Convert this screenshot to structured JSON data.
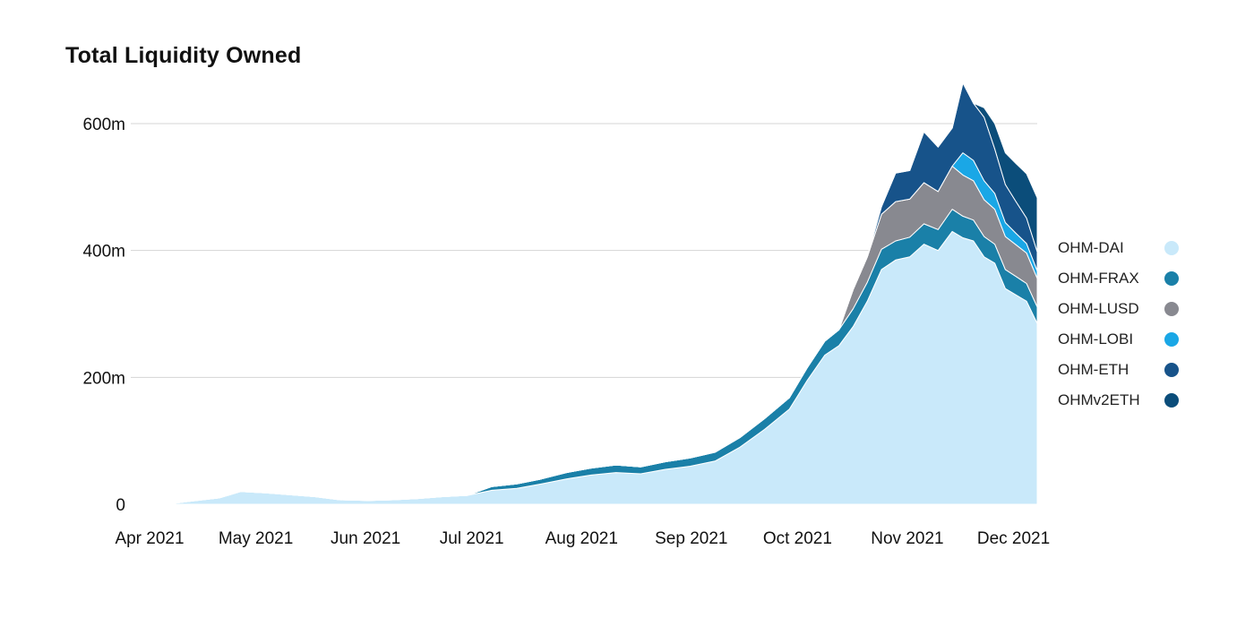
{
  "chart_data": {
    "type": "area",
    "stacked": true,
    "title": "Total Liquidity Owned",
    "xlabel": "",
    "ylabel": "",
    "x_range": [
      "2021-04-01",
      "2021-12-12"
    ],
    "ylim": [
      0,
      690000000
    ],
    "yticks": [
      {
        "value": 0,
        "label": "0"
      },
      {
        "value": 200000000,
        "label": "200m"
      },
      {
        "value": 400000000,
        "label": "400m"
      },
      {
        "value": 600000000,
        "label": "600m"
      }
    ],
    "xticks": [
      {
        "value": "2021-04-01",
        "label": "Apr 2021"
      },
      {
        "value": "2021-05-01",
        "label": "May 2021"
      },
      {
        "value": "2021-06-01",
        "label": "Jun 2021"
      },
      {
        "value": "2021-07-01",
        "label": "Jul 2021"
      },
      {
        "value": "2021-08-01",
        "label": "Aug 2021"
      },
      {
        "value": "2021-09-01",
        "label": "Sep 2021"
      },
      {
        "value": "2021-10-01",
        "label": "Oct 2021"
      },
      {
        "value": "2021-11-01",
        "label": "Nov 2021"
      },
      {
        "value": "2021-12-01",
        "label": "Dec 2021"
      }
    ],
    "grid": "horizontal",
    "legend_position": "right",
    "x": [
      "2021-04-10",
      "2021-04-17",
      "2021-04-25",
      "2021-05-01",
      "2021-05-08",
      "2021-05-15",
      "2021-05-22",
      "2021-05-29",
      "2021-06-06",
      "2021-06-13",
      "2021-06-20",
      "2021-06-27",
      "2021-07-04",
      "2021-07-11",
      "2021-07-18",
      "2021-07-25",
      "2021-08-01",
      "2021-08-08",
      "2021-08-15",
      "2021-08-22",
      "2021-08-29",
      "2021-09-05",
      "2021-09-12",
      "2021-09-19",
      "2021-09-26",
      "2021-10-03",
      "2021-10-08",
      "2021-10-13",
      "2021-10-17",
      "2021-10-21",
      "2021-10-25",
      "2021-10-29",
      "2021-11-02",
      "2021-11-06",
      "2021-11-10",
      "2021-11-14",
      "2021-11-18",
      "2021-11-21",
      "2021-11-24",
      "2021-11-27",
      "2021-11-30",
      "2021-12-03",
      "2021-12-06",
      "2021-12-09",
      "2021-12-12"
    ],
    "series": [
      {
        "name": "OHM-DAI",
        "color": "#c9e9fa",
        "values": [
          0,
          5000000,
          10000000,
          20000000,
          18000000,
          15000000,
          12000000,
          7000000,
          6000000,
          7000000,
          9000000,
          12000000,
          14000000,
          22000000,
          25000000,
          32000000,
          40000000,
          46000000,
          50000000,
          48000000,
          55000000,
          60000000,
          68000000,
          90000000,
          118000000,
          150000000,
          195000000,
          235000000,
          250000000,
          280000000,
          320000000,
          370000000,
          385000000,
          390000000,
          410000000,
          400000000,
          430000000,
          420000000,
          415000000,
          390000000,
          380000000,
          340000000,
          330000000,
          320000000,
          285000000
        ]
      },
      {
        "name": "OHM-FRAX",
        "color": "#1a80a8",
        "values": [
          0,
          0,
          0,
          0,
          0,
          0,
          0,
          0,
          0,
          0,
          0,
          0,
          0,
          6000000,
          7000000,
          8000000,
          10000000,
          11000000,
          12000000,
          11000000,
          12000000,
          13000000,
          14000000,
          15000000,
          17000000,
          18000000,
          20000000,
          22000000,
          25000000,
          28000000,
          30000000,
          32000000,
          30000000,
          31000000,
          32000000,
          33000000,
          35000000,
          34000000,
          33000000,
          32000000,
          30000000,
          30000000,
          29000000,
          28000000,
          26000000
        ]
      },
      {
        "name": "OHM-LUSD",
        "color": "#888990",
        "values": [
          0,
          0,
          0,
          0,
          0,
          0,
          0,
          0,
          0,
          0,
          0,
          0,
          0,
          0,
          0,
          0,
          0,
          0,
          0,
          0,
          0,
          0,
          0,
          0,
          0,
          0,
          0,
          0,
          0,
          30000000,
          40000000,
          55000000,
          62000000,
          60000000,
          65000000,
          60000000,
          68000000,
          65000000,
          62000000,
          58000000,
          55000000,
          52000000,
          50000000,
          48000000,
          45000000
        ]
      },
      {
        "name": "OHM-LOBI",
        "color": "#1aa7e6",
        "values": [
          0,
          0,
          0,
          0,
          0,
          0,
          0,
          0,
          0,
          0,
          0,
          0,
          0,
          0,
          0,
          0,
          0,
          0,
          0,
          0,
          0,
          0,
          0,
          0,
          0,
          0,
          0,
          0,
          0,
          0,
          0,
          0,
          0,
          0,
          0,
          0,
          0,
          35000000,
          32000000,
          30000000,
          25000000,
          22000000,
          18000000,
          15000000,
          12000000
        ]
      },
      {
        "name": "OHM-ETH",
        "color": "#17538a",
        "values": [
          0,
          0,
          0,
          0,
          0,
          0,
          0,
          0,
          0,
          0,
          0,
          0,
          0,
          0,
          0,
          0,
          0,
          0,
          0,
          0,
          0,
          0,
          0,
          0,
          0,
          0,
          0,
          0,
          0,
          0,
          0,
          12000000,
          45000000,
          45000000,
          80000000,
          70000000,
          60000000,
          110000000,
          90000000,
          100000000,
          70000000,
          60000000,
          50000000,
          40000000,
          30000000
        ]
      },
      {
        "name": "OHMv2ETH",
        "color": "#0b4d7a",
        "values": [
          0,
          0,
          0,
          0,
          0,
          0,
          0,
          0,
          0,
          0,
          0,
          0,
          0,
          0,
          0,
          0,
          0,
          0,
          0,
          0,
          0,
          0,
          0,
          0,
          0,
          0,
          0,
          0,
          0,
          0,
          0,
          0,
          0,
          0,
          0,
          0,
          0,
          0,
          0,
          15000000,
          40000000,
          50000000,
          60000000,
          70000000,
          85000000
        ]
      }
    ]
  }
}
